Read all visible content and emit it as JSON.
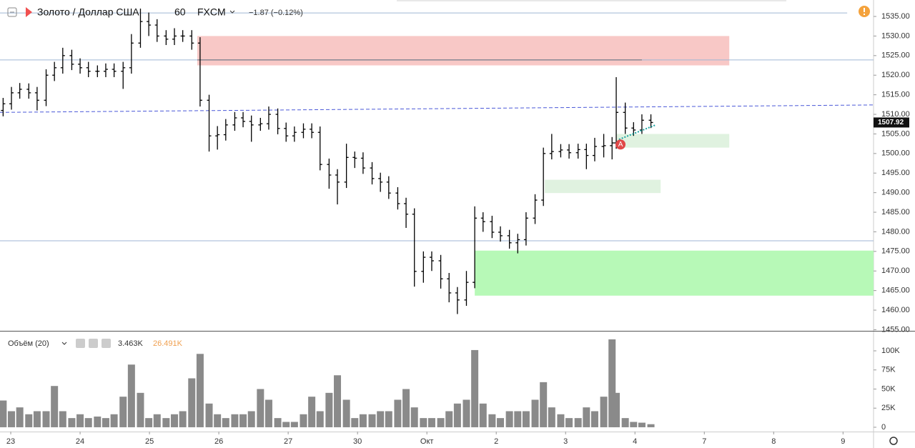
{
  "header": {
    "symbol": "Золото / Доллар США",
    "interval": "60",
    "source": "FXCM",
    "change": "−1.87 (−0.12%)",
    "marker": "A"
  },
  "chart_data": [
    {
      "type": "ohlc",
      "color": "#000000",
      "x": [
        -0.11,
        0.01,
        0.13,
        0.26,
        0.38,
        0.51,
        0.63,
        0.75,
        0.88,
        1.0,
        1.12,
        1.25,
        1.37,
        1.49,
        1.62,
        1.74,
        1.87,
        1.99,
        2.11,
        2.24,
        2.36,
        2.48,
        2.61,
        2.73,
        2.86,
        2.98,
        3.1,
        3.23,
        3.35,
        3.47,
        3.6,
        3.72,
        3.85,
        3.97,
        4.09,
        4.22,
        4.34,
        4.46,
        4.59,
        4.71,
        4.84,
        4.96,
        5.08,
        5.21,
        5.33,
        5.45,
        5.58,
        5.7,
        5.82,
        5.95,
        6.07,
        6.2,
        6.32,
        6.44,
        6.57,
        6.69,
        6.81,
        6.94,
        7.06,
        7.19,
        7.31,
        7.43,
        7.56,
        7.68,
        7.8,
        7.93,
        8.05,
        8.18,
        8.3,
        8.42,
        8.55,
        8.67,
        8.73,
        8.86,
        8.98,
        9.1,
        9.23
      ],
      "open": [
        1511,
        1512.7,
        1515.5,
        1516.4,
        1515.5,
        1513.6,
        1520,
        1521.9,
        1525,
        1522.8,
        1521.9,
        1521,
        1521,
        1521.5,
        1521,
        1521.9,
        1528.2,
        1533.7,
        1532.8,
        1530,
        1529.2,
        1530,
        1530,
        1528.2,
        1513.6,
        1504.5,
        1504.8,
        1507.3,
        1509.1,
        1508.2,
        1507.3,
        1507.6,
        1510,
        1506.4,
        1504.5,
        1505.4,
        1506.2,
        1505.4,
        1497.2,
        1494.5,
        1492.7,
        1499,
        1498.8,
        1496.3,
        1493.6,
        1492.7,
        1489.9,
        1487.2,
        1484.5,
        1469.9,
        1473.5,
        1472.6,
        1468,
        1464.4,
        1462.6,
        1467.1,
        1483.5,
        1482.6,
        1479.9,
        1479,
        1477.2,
        1478,
        1483.5,
        1488.1,
        1500,
        1500.5,
        1500.9,
        1500.2,
        1501,
        1499.5,
        1501.8,
        1502,
        1502.7,
        1510.5,
        1506.5,
        1506,
        1508.5
      ],
      "high": [
        1514.2,
        1517,
        1518,
        1517.9,
        1517,
        1521.5,
        1523.4,
        1527,
        1526.5,
        1524.3,
        1523.4,
        1522.5,
        1523,
        1523,
        1523.4,
        1530.5,
        1537,
        1536,
        1534.3,
        1531.5,
        1532,
        1531.5,
        1531.5,
        1529.7,
        1515,
        1507,
        1508.8,
        1510.6,
        1510.6,
        1509.7,
        1509.1,
        1512,
        1511.5,
        1507.9,
        1506.9,
        1507.7,
        1507.7,
        1506.9,
        1498.7,
        1496,
        1502.5,
        1500.5,
        1500.3,
        1497.8,
        1495.1,
        1494.2,
        1491.4,
        1488.7,
        1486,
        1475,
        1475,
        1474.1,
        1469.5,
        1465.9,
        1470,
        1486.5,
        1485,
        1484.1,
        1481.4,
        1480.5,
        1479.5,
        1485,
        1489.6,
        1501.5,
        1505,
        1502.4,
        1502.4,
        1502.5,
        1502.5,
        1504,
        1505,
        1504.2,
        1519.5,
        1513,
        1508,
        1510,
        1510
      ],
      "low": [
        1509.5,
        1511.2,
        1514,
        1514,
        1511,
        1512.1,
        1518.5,
        1520.4,
        1521.3,
        1520.4,
        1519.5,
        1519.5,
        1519.5,
        1519.5,
        1516.5,
        1520.4,
        1527,
        1530,
        1528.5,
        1527.7,
        1527.7,
        1528.5,
        1526.5,
        1512,
        1500.5,
        1501,
        1503.3,
        1505.8,
        1506.7,
        1503,
        1505.8,
        1506.1,
        1504.9,
        1503,
        1503,
        1503.9,
        1503.9,
        1495.7,
        1491,
        1487,
        1491.2,
        1496.3,
        1494.8,
        1492.1,
        1490.2,
        1488.4,
        1485.7,
        1481,
        1466,
        1467,
        1470,
        1465.5,
        1462,
        1459,
        1461.1,
        1465.6,
        1480,
        1478.4,
        1477.5,
        1475.7,
        1474.5,
        1476.5,
        1482,
        1486.6,
        1498.5,
        1499,
        1498.7,
        1498.7,
        1496,
        1498,
        1499,
        1498.5,
        1501.2,
        1505,
        1504.5,
        1505,
        1506.5
      ],
      "close": [
        1512.7,
        1515.5,
        1516.4,
        1515.5,
        1513.6,
        1520,
        1521.9,
        1525,
        1522.8,
        1521.9,
        1521,
        1521,
        1521.5,
        1521,
        1521.9,
        1528.2,
        1533.7,
        1532.8,
        1530,
        1529.2,
        1530,
        1530,
        1528.2,
        1513.6,
        1504.5,
        1504.8,
        1507.3,
        1509.1,
        1508.2,
        1507.3,
        1507.6,
        1510,
        1506.4,
        1504.5,
        1505.4,
        1506.2,
        1505.4,
        1497.2,
        1494.5,
        1492.7,
        1499,
        1498.8,
        1496.3,
        1493.6,
        1492.7,
        1489.9,
        1487.2,
        1484.5,
        1469.9,
        1473.5,
        1472.6,
        1468,
        1464.4,
        1462.6,
        1467.1,
        1483.5,
        1482.6,
        1479.9,
        1479,
        1477.2,
        1478,
        1483.5,
        1488.1,
        1500,
        1500.5,
        1500.9,
        1500.2,
        1501,
        1499.5,
        1501.8,
        1502,
        1502.7,
        1510.5,
        1506.5,
        1506,
        1508.5,
        1507.92
      ],
      "xlim": [
        -0.155,
        12.44
      ],
      "xticks": [
        {
          "value": 0,
          "label": "23"
        },
        {
          "value": 1,
          "label": "24"
        },
        {
          "value": 2,
          "label": "25"
        },
        {
          "value": 3,
          "label": "26"
        },
        {
          "value": 4,
          "label": "27"
        },
        {
          "value": 5,
          "label": "30"
        },
        {
          "value": 6,
          "label": "Окт"
        },
        {
          "value": 7,
          "label": "2"
        },
        {
          "value": 8,
          "label": "3"
        },
        {
          "value": 9,
          "label": "4"
        },
        {
          "value": 10,
          "label": "7"
        },
        {
          "value": 11,
          "label": "8"
        },
        {
          "value": 12,
          "label": "9"
        }
      ],
      "ylim": [
        1454.9,
        1539.2
      ],
      "yticks": [
        {
          "value": 1455,
          "label": "1455.00"
        },
        {
          "value": 1460,
          "label": "1460.00"
        },
        {
          "value": 1465,
          "label": "1465.00"
        },
        {
          "value": 1470,
          "label": "1470.00"
        },
        {
          "value": 1475,
          "label": "1475.00"
        },
        {
          "value": 1480,
          "label": "1480.00"
        },
        {
          "value": 1485,
          "label": "1485.00"
        },
        {
          "value": 1490,
          "label": "1490.00"
        },
        {
          "value": 1495,
          "label": "1495.00"
        },
        {
          "value": 1500,
          "label": "1500.00"
        },
        {
          "value": 1505,
          "label": "1505.00"
        },
        {
          "value": 1510,
          "label": "1510.00"
        },
        {
          "value": 1515,
          "label": "1515.00"
        },
        {
          "value": 1520,
          "label": "1520.00"
        },
        {
          "value": 1525,
          "label": "1525.00"
        },
        {
          "value": 1530,
          "label": "1530.00"
        },
        {
          "value": 1535,
          "label": "1535.00"
        }
      ],
      "zones": [
        {
          "x": [
            2.69,
            10.36
          ],
          "y": [
            1522.5,
            1530
          ],
          "color": "#f8c8c6"
        },
        {
          "x": [
            8.73,
            10.36
          ],
          "y": [
            1501.5,
            1505
          ],
          "color": "#e0f2e0"
        },
        {
          "x": [
            7.7,
            9.37
          ],
          "y": [
            1489.9,
            1493.3
          ],
          "color": "#e0f2e0"
        },
        {
          "x": [
            6.69,
            12.44
          ],
          "y": [
            1463.7,
            1475.2
          ],
          "color": "#b7f9b7"
        }
      ],
      "hlines": [
        {
          "x": [
            -0.155,
            12.06
          ],
          "y": 1535.9,
          "color": "#9fb6d4"
        },
        {
          "x": [
            -0.155,
            12.44
          ],
          "y": 1523.9,
          "color": "#9fb6d4"
        },
        {
          "x": [
            2.69,
            9.1
          ],
          "y": 1523.9,
          "color": "#606a78"
        },
        {
          "x": [
            -0.155,
            12.44
          ],
          "y": 1477.7,
          "color": "#9fb6d4"
        }
      ],
      "trend": {
        "x": [
          -0.155,
          12.44
        ],
        "y": [
          1510.5,
          1512.4
        ],
        "color": "#4a58d8"
      },
      "arrow": {
        "x": [
          8.77,
          9.3
        ],
        "y": [
          1503.6,
          1507.3
        ],
        "color": "#1aa3a0"
      }
    },
    {
      "type": "bar",
      "title": "Объём (20)",
      "legend_values": [
        "3.463K",
        "26.491K"
      ],
      "color": "#8a8a8a",
      "x": [
        -0.11,
        0.01,
        0.13,
        0.26,
        0.38,
        0.51,
        0.63,
        0.75,
        0.88,
        1.0,
        1.12,
        1.25,
        1.37,
        1.49,
        1.62,
        1.74,
        1.87,
        1.99,
        2.11,
        2.24,
        2.36,
        2.48,
        2.61,
        2.73,
        2.86,
        2.98,
        3.1,
        3.23,
        3.35,
        3.47,
        3.6,
        3.72,
        3.85,
        3.97,
        4.09,
        4.22,
        4.34,
        4.46,
        4.59,
        4.71,
        4.84,
        4.96,
        5.08,
        5.21,
        5.33,
        5.45,
        5.58,
        5.7,
        5.82,
        5.95,
        6.07,
        6.2,
        6.32,
        6.44,
        6.57,
        6.69,
        6.81,
        6.94,
        7.06,
        7.19,
        7.31,
        7.43,
        7.56,
        7.68,
        7.8,
        7.93,
        8.05,
        8.18,
        8.3,
        8.42,
        8.55,
        8.67,
        8.73,
        8.86,
        8.98,
        9.1,
        9.23
      ],
      "values": [
        35000,
        21000,
        26000,
        17000,
        21000,
        21000,
        54000,
        21000,
        12000,
        17000,
        12000,
        14000,
        12000,
        17000,
        40000,
        82000,
        45000,
        12000,
        17000,
        12000,
        17000,
        21000,
        64000,
        96000,
        31000,
        17000,
        12000,
        17000,
        17000,
        21000,
        50000,
        36000,
        12000,
        7000,
        7000,
        17000,
        40000,
        21000,
        45000,
        68000,
        36000,
        12000,
        17000,
        17000,
        21000,
        21000,
        36000,
        50000,
        26000,
        12000,
        12000,
        12000,
        21000,
        31000,
        36000,
        101000,
        31000,
        17000,
        12000,
        21000,
        21000,
        21000,
        36000,
        59000,
        26000,
        17000,
        12000,
        12000,
        26000,
        21000,
        40000,
        115000,
        45000,
        12000,
        7000,
        6000,
        4000
      ],
      "ylim": [
        -1900,
        124300
      ],
      "yticks": [
        0,
        {
          "value": 25000,
          "label": "25K"
        },
        {
          "value": 50000,
          "label": "50K"
        },
        {
          "value": 75000,
          "label": "75K"
        },
        {
          "value": 100000,
          "label": "100K"
        }
      ]
    }
  ]
}
